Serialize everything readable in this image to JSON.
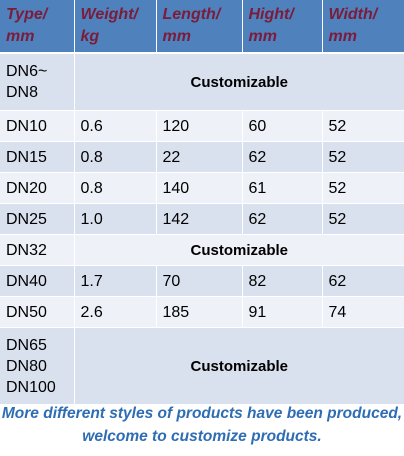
{
  "table": {
    "headers": [
      "Type/\nmm",
      "Weight/\nkg",
      "Length/\nmm",
      "Hight/\nmm",
      "Width/\nmm"
    ],
    "rows": [
      {
        "type": "DN6~\nDN8",
        "merged": "Customizable"
      },
      {
        "type": "DN10",
        "weight": "0.6",
        "length": "120",
        "hight": "60",
        "width": "52"
      },
      {
        "type": "DN15",
        "weight": "0.8",
        "length": "22",
        "hight": "62",
        "width": "52"
      },
      {
        "type": "DN20",
        "weight": "0.8",
        "length": "140",
        "hight": "61",
        "width": "52"
      },
      {
        "type": "DN25",
        "weight": "1.0",
        "length": "142",
        "hight": "62",
        "width": "52"
      },
      {
        "type": "DN32",
        "merged": "Customizable"
      },
      {
        "type": "DN40",
        "weight": "1.7",
        "length": "70",
        "hight": "82",
        "width": "62"
      },
      {
        "type": "DN50",
        "weight": "2.6",
        "length": "185",
        "hight": "91",
        "width": "74"
      },
      {
        "type": "DN65\nDN80\nDN100",
        "merged": "Customizable"
      }
    ]
  },
  "footnote": "More different styles of products have been produced, welcome to customize products.",
  "colors": {
    "header_bg": "#4f81bd",
    "header_text": "#7a1c3a",
    "row_dark": "#d9e1ee",
    "row_light": "#eef1f8",
    "footnote_text": "#2e6db4"
  }
}
